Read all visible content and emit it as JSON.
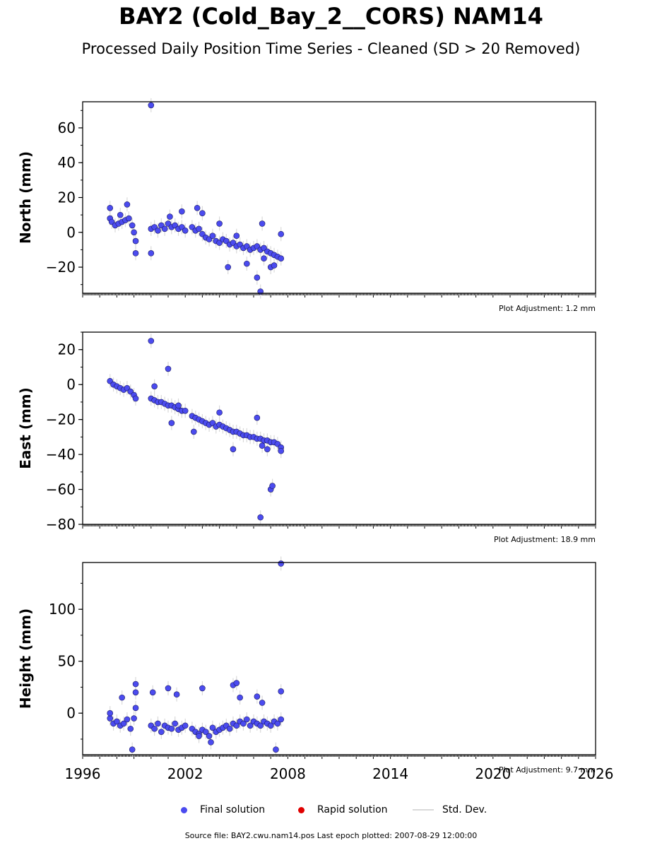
{
  "header": {
    "title": "BAY2 (Cold_Bay_2__CORS) NAM14",
    "subtitle": "Processed Daily Position Time Series - Cleaned (SD > 20 Removed)"
  },
  "legend": {
    "final_label": "Final solution",
    "rapid_label": "Rapid solution",
    "std_label": "Std. Dev.",
    "final_color": "#4b4bef",
    "rapid_color": "#e00000",
    "std_color": "#d9d9d9"
  },
  "footer": {
    "source_text": "Source file: BAY2.cwu.nam14.pos  Last epoch plotted: 2007-08-29 12:00:00"
  },
  "chart_data": [
    {
      "type": "scatter",
      "ylabel": "North (mm)",
      "adjustment_label": "Plot Adjustment: 1.2 mm",
      "xlim": [
        1996,
        2026
      ],
      "ylim": [
        -35,
        75
      ],
      "yticks": [
        -20,
        0,
        20,
        40,
        60
      ],
      "ytick_labels": [
        "−20",
        "0",
        "20",
        "40",
        "60"
      ],
      "series": [
        {
          "x": [
            1997.6,
            1997.7,
            1997.9,
            1998.1,
            1998.3,
            1998.5,
            1998.7,
            1998.9,
            1999.0,
            1999.1,
            2000.0,
            2000.2,
            2000.4,
            2000.6,
            2000.8,
            2001.0,
            2001.2,
            2001.4,
            2001.6,
            2001.8,
            2002.0,
            2002.4,
            2002.6,
            2002.8,
            2003.0,
            2003.2,
            2003.4,
            2003.6,
            2003.8,
            2004.0,
            2004.2,
            2004.4,
            2004.6,
            2004.8,
            2005.0,
            2005.2,
            2005.4,
            2005.6,
            2005.8,
            2006.0,
            2006.2,
            2006.4,
            2006.6,
            2006.8,
            2007.0,
            2007.2,
            2007.4,
            2007.6,
            1997.6,
            1998.2,
            1998.6,
            1999.1,
            2000.0,
            2000.0,
            2001.1,
            2001.8,
            2002.7,
            2003.0,
            2004.0,
            2004.5,
            2005.0,
            2005.6,
            2006.2,
            2006.4,
            2006.5,
            2006.6,
            2007.0,
            2007.2,
            2007.6
          ],
          "y": [
            8,
            6,
            4,
            5,
            6,
            7,
            8,
            4,
            0,
            -5,
            2,
            3,
            1,
            4,
            2,
            5,
            3,
            4,
            2,
            3,
            1,
            3,
            1,
            2,
            -1,
            -3,
            -4,
            -2,
            -5,
            -6,
            -4,
            -5,
            -7,
            -6,
            -8,
            -7,
            -9,
            -8,
            -10,
            -9,
            -8,
            -10,
            -9,
            -11,
            -12,
            -13,
            -14,
            -15,
            14,
            10,
            16,
            -12,
            73,
            -12,
            9,
            12,
            14,
            11,
            5,
            -20,
            -2,
            -18,
            -26,
            -34,
            5,
            -15,
            -20,
            -19,
            -1
          ]
        }
      ]
    },
    {
      "type": "scatter",
      "ylabel": "East (mm)",
      "adjustment_label": "Plot Adjustment: 18.9 mm",
      "xlim": [
        1996,
        2026
      ],
      "ylim": [
        -80,
        30
      ],
      "yticks": [
        -80,
        -60,
        -40,
        -20,
        0,
        20
      ],
      "ytick_labels": [
        "−80",
        "−60",
        "−40",
        "−20",
        "0",
        "20"
      ],
      "series": [
        {
          "x": [
            1997.6,
            1997.8,
            1998.0,
            1998.2,
            1998.4,
            1998.6,
            1998.8,
            1999.0,
            1999.1,
            2000.0,
            2000.2,
            2000.4,
            2000.6,
            2000.8,
            2001.0,
            2001.2,
            2001.4,
            2001.6,
            2001.8,
            2002.0,
            2002.4,
            2002.6,
            2002.8,
            2003.0,
            2003.2,
            2003.4,
            2003.6,
            2003.8,
            2004.0,
            2004.2,
            2004.4,
            2004.6,
            2004.8,
            2005.0,
            2005.2,
            2005.4,
            2005.6,
            2005.8,
            2006.0,
            2006.2,
            2006.4,
            2006.6,
            2006.8,
            2007.0,
            2007.2,
            2007.4,
            2007.6,
            2000.0,
            2000.2,
            2001.0,
            2001.2,
            2001.6,
            2002.5,
            2004.0,
            2004.8,
            2006.2,
            2006.4,
            2006.5,
            2006.8,
            2007.0,
            2007.1,
            2007.6
          ],
          "y": [
            2,
            0,
            -1,
            -2,
            -3,
            -2,
            -4,
            -6,
            -8,
            -8,
            -9,
            -10,
            -10,
            -11,
            -12,
            -12,
            -13,
            -14,
            -15,
            -15,
            -18,
            -19,
            -20,
            -21,
            -22,
            -23,
            -22,
            -24,
            -23,
            -24,
            -25,
            -26,
            -27,
            -27,
            -28,
            -29,
            -29,
            -30,
            -30,
            -31,
            -31,
            -32,
            -32,
            -33,
            -33,
            -34,
            -36,
            25,
            -1,
            9,
            -22,
            -12,
            -27,
            -16,
            -37,
            -19,
            -76,
            -35,
            -37,
            -60,
            -58,
            -38
          ]
        }
      ]
    },
    {
      "type": "scatter",
      "ylabel": "Height (mm)",
      "adjustment_label": "Plot Adjustment: 9.7 mm",
      "xlim": [
        1996,
        2026
      ],
      "ylim": [
        -40,
        145
      ],
      "yticks": [
        0,
        50,
        100
      ],
      "ytick_labels": [
        "0",
        "50",
        "100"
      ],
      "xticks": [
        1996,
        2002,
        2008,
        2014,
        2020,
        2026
      ],
      "xtick_labels": [
        "1996",
        "2002",
        "2008",
        "2014",
        "2020",
        "2026"
      ],
      "series": [
        {
          "x": [
            1997.6,
            1997.8,
            1998.0,
            1998.2,
            1998.4,
            1998.6,
            1998.8,
            1999.0,
            1999.1,
            2000.0,
            2000.2,
            2000.4,
            2000.6,
            2000.8,
            2001.0,
            2001.2,
            2001.4,
            2001.6,
            2001.8,
            2002.0,
            2002.4,
            2002.6,
            2002.8,
            2003.0,
            2003.2,
            2003.4,
            2003.6,
            2003.8,
            2004.0,
            2004.2,
            2004.4,
            2004.6,
            2004.8,
            2005.0,
            2005.2,
            2005.4,
            2005.6,
            2005.8,
            2006.0,
            2006.2,
            2006.4,
            2006.6,
            2006.8,
            2007.0,
            2007.2,
            2007.4,
            2007.6,
            1997.6,
            1998.3,
            1999.1,
            1999.1,
            2000.1,
            2001.0,
            2001.5,
            2002.8,
            2003.5,
            2004.8,
            2005.0,
            2005.2,
            2006.2,
            2006.5,
            2007.3,
            2007.6,
            2007.6,
            1998.9,
            2003.0
          ],
          "y": [
            -5,
            -10,
            -8,
            -12,
            -10,
            -6,
            -15,
            -5,
            5,
            -12,
            -15,
            -10,
            -18,
            -12,
            -14,
            -15,
            -10,
            -16,
            -14,
            -12,
            -15,
            -18,
            -20,
            -16,
            -18,
            -22,
            -14,
            -18,
            -16,
            -14,
            -12,
            -15,
            -10,
            -12,
            -8,
            -10,
            -6,
            -12,
            -8,
            -10,
            -12,
            -8,
            -10,
            -12,
            -8,
            -10,
            -6,
            0,
            15,
            20,
            28,
            20,
            24,
            18,
            -22,
            -28,
            27,
            29,
            15,
            16,
            10,
            -35,
            21,
            144,
            -35,
            24
          ]
        }
      ]
    }
  ]
}
